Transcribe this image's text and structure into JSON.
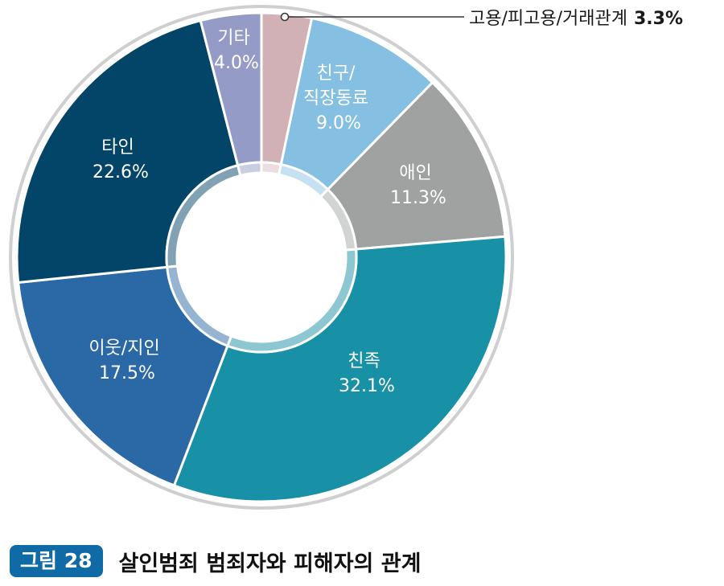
{
  "chart_data": {
    "type": "pie",
    "subtype": "donut",
    "title": "살인범죄 범죄자와 피해자의 관계",
    "figure_label": "그림 28",
    "unit": "%",
    "start_angle_deg": 0,
    "direction": "clockwise",
    "slices": [
      {
        "label": "고용/피고용/거래관계",
        "value": 3.3,
        "display": "3.3%",
        "color": "#d2b1b6",
        "inner_color": "#ecdde0",
        "label_position": "callout"
      },
      {
        "label": "친구/직장동료",
        "label_lines": [
          "친구/",
          "직장동료"
        ],
        "value": 9.0,
        "display": "9.0%",
        "color": "#85c0e2",
        "inner_color": "#c6e1f2",
        "label_position": "inside"
      },
      {
        "label": "애인",
        "label_lines": [
          "애인"
        ],
        "value": 11.3,
        "display": "11.3%",
        "color": "#a0a1a1",
        "inner_color": "#d2d3d3",
        "label_position": "inside"
      },
      {
        "label": "친족",
        "label_lines": [
          "친족"
        ],
        "value": 32.1,
        "display": "32.1%",
        "color": "#1891a6",
        "inner_color": "#8cc7d2",
        "label_position": "inside"
      },
      {
        "label": "이웃/지인",
        "label_lines": [
          "이웃/지인"
        ],
        "value": 17.5,
        "display": "17.5%",
        "color": "#2b69a6",
        "inner_color": "#95b4d2",
        "label_position": "inside"
      },
      {
        "label": "타인",
        "label_lines": [
          "타인"
        ],
        "value": 22.6,
        "display": "22.6%",
        "color": "#034569",
        "inner_color": "#81a2b4",
        "label_position": "inside"
      },
      {
        "label": "기타",
        "label_lines": [
          "기타"
        ],
        "value": 4.0,
        "display": "4.0%",
        "color": "#959bc7",
        "inner_color": "#caceE3",
        "label_position": "inside"
      }
    ],
    "legend": "none"
  },
  "labels": {
    "callout": "고용/피고용/거래관계",
    "callout_value": "3.3%",
    "slices": [
      {
        "line1": "친구/",
        "line2": "직장동료",
        "line3": "9.0%"
      },
      {
        "line1": "애인",
        "line2": "11.3%"
      },
      {
        "line1": "친족",
        "line2": "32.1%"
      },
      {
        "line1": "이웃/지인",
        "line2": "17.5%"
      },
      {
        "line1": "타인",
        "line2": "22.6%"
      },
      {
        "line1": "기타",
        "line2": "4.0%"
      }
    ]
  },
  "caption": {
    "badge": "그림 28",
    "title": "살인범죄 범죄자와 피해자의 관계"
  },
  "colors": {
    "outer_ring": "#cfcfcf",
    "badge_bg": "#0f6aa6",
    "slice_separator": "#ffffff"
  }
}
